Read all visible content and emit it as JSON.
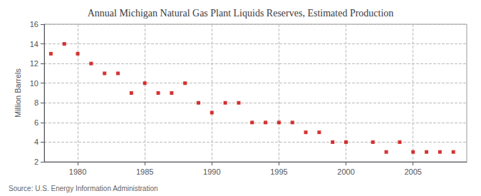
{
  "chart_data": {
    "type": "scatter",
    "title": "Annual Michigan Natural Gas Plant Liquids Reserves, Estimated Production",
    "ylabel": "Million Barrels",
    "annotations": [
      "Source: U.S. Energy Information Administration"
    ],
    "x": [
      1978,
      1979,
      1980,
      1981,
      1982,
      1983,
      1984,
      1985,
      1986,
      1987,
      1988,
      1989,
      1990,
      1991,
      1992,
      1993,
      1994,
      1995,
      1996,
      1997,
      1998,
      1999,
      2000,
      2002,
      2003,
      2004,
      2005,
      2006,
      2007,
      2008
    ],
    "values": [
      13,
      14,
      13,
      12,
      11,
      11,
      9,
      10,
      9,
      9,
      10,
      8,
      7,
      8,
      8,
      6,
      6,
      6,
      6,
      5,
      5,
      4,
      4,
      4,
      3,
      4,
      3,
      3,
      3,
      3
    ],
    "color": "#cc0000",
    "marker": "square",
    "xlim": [
      1977.5,
      2009
    ],
    "xticks": [
      1980,
      1985,
      1990,
      1995,
      2000,
      2005
    ],
    "ylim": [
      2,
      16
    ],
    "yticks": [
      2,
      4,
      6,
      8,
      10,
      12,
      14,
      16
    ],
    "grid": true
  }
}
